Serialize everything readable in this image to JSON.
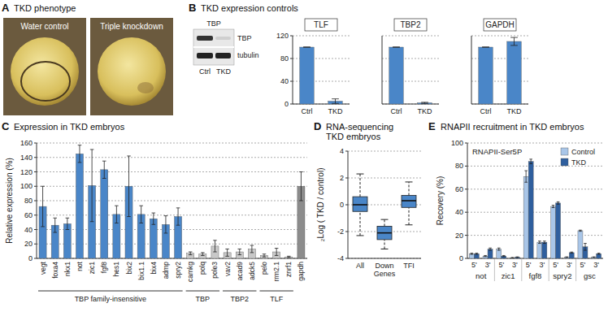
{
  "panels": {
    "A": {
      "letter": "A",
      "title": "TKD phenotype",
      "images": [
        "Water control",
        "Triple knockdown"
      ]
    },
    "B": {
      "letter": "B",
      "title": "TKD expression controls",
      "blot": {
        "protein": "TBP",
        "bands": [
          "TBP",
          "tubulin"
        ],
        "lanes": [
          "Ctrl",
          "TKD"
        ]
      }
    },
    "C": {
      "letter": "C",
      "title": "Expression in TKD embryos"
    },
    "D": {
      "letter": "D",
      "title_lines": [
        "RNA-sequencing",
        "TKD embryos"
      ]
    },
    "E": {
      "letter": "E",
      "title": "RNAPII recruitment in TKD embryos"
    }
  },
  "chart_data": [
    {
      "type": "bar",
      "title": "TLF",
      "categories": [
        "Ctrl",
        "TKD"
      ],
      "values": [
        100,
        5
      ],
      "errors": [
        0,
        4
      ],
      "color": "#4a86c8",
      "ylim": [
        0,
        120
      ],
      "yticks": [
        0,
        40,
        80,
        120
      ],
      "grid": true
    },
    {
      "type": "bar",
      "title": "TBP2",
      "categories": [
        "Ctrl",
        "TKD"
      ],
      "values": [
        100,
        2
      ],
      "errors": [
        0,
        1
      ],
      "color": "#4a86c8",
      "ylim": [
        0,
        120
      ],
      "yticks": [
        0,
        40,
        80,
        120
      ],
      "grid": true,
      "tick_labels": "x"
    },
    {
      "type": "bar",
      "title": "GAPDH",
      "categories": [
        "Ctrl",
        "TKD"
      ],
      "values": [
        100,
        110
      ],
      "errors": [
        0,
        7
      ],
      "color": "#4a86c8",
      "ylim": [
        0,
        120
      ],
      "yticks": [
        0,
        40,
        80,
        120
      ],
      "grid": true,
      "tick_labels": "x"
    },
    {
      "type": "bar",
      "ylabel": "Relative expression (%)",
      "categories": [
        "vegt",
        "foxa4",
        "nkx1",
        "not",
        "zic1",
        "fgf8",
        "hes1",
        "bix2",
        "bix1.1",
        "bix4",
        "admp",
        "spry2",
        "camkg",
        "polq",
        "pole3",
        "vav2",
        "acad9",
        "adck5",
        "pelo",
        "rrm2.1",
        "znrf1",
        "gapdh"
      ],
      "values": [
        72,
        46,
        48,
        145,
        101,
        123,
        61,
        100,
        61,
        55,
        47,
        58,
        7,
        6,
        17,
        8,
        9,
        13,
        4,
        9,
        2,
        100
      ],
      "errors": [
        28,
        10,
        8,
        12,
        50,
        12,
        12,
        42,
        12,
        8,
        12,
        12,
        2,
        2,
        8,
        5,
        4,
        5,
        2,
        5,
        1,
        20
      ],
      "colors": [
        "#4a86c8",
        "#4a86c8",
        "#4a86c8",
        "#4a86c8",
        "#4a86c8",
        "#4a86c8",
        "#4a86c8",
        "#4a86c8",
        "#4a86c8",
        "#4a86c8",
        "#4a86c8",
        "#4a86c8",
        "#c8c8c8",
        "#c8c8c8",
        "#c8c8c8",
        "#c8c8c8",
        "#c8c8c8",
        "#c8c8c8",
        "#c8c8c8",
        "#c8c8c8",
        "#c8c8c8",
        "#8c8c8c"
      ],
      "groups": [
        {
          "label": "TBP family-insensitive",
          "count": 12
        },
        {
          "label": "TBP",
          "count": 3
        },
        {
          "label": "TBP2",
          "count": 3
        },
        {
          "label": "TLF",
          "count": 3
        }
      ],
      "ylim": [
        0,
        160
      ],
      "yticks": [
        0,
        20,
        40,
        60,
        80,
        100,
        120,
        140,
        160
      ],
      "grid": true
    },
    {
      "type": "box",
      "ylabel": "₂Log ( TKD / control)",
      "categories": [
        "All",
        "Down Genes",
        "TFI"
      ],
      "boxes": [
        {
          "whisker_low": -2.3,
          "q1": -0.5,
          "median": 0,
          "q3": 0.6,
          "whisker_high": 2.3
        },
        {
          "whisker_low": -3.3,
          "q1": -2.6,
          "median": -2.1,
          "q3": -1.6,
          "whisker_high": -1.1
        },
        {
          "whisker_low": -1.5,
          "q1": -0.2,
          "median": 0.3,
          "q3": 0.7,
          "whisker_high": 1.7
        }
      ],
      "color": "#4a86c8",
      "ylim": [
        -4,
        4
      ],
      "yticks": [
        -4,
        -2,
        0,
        2,
        4
      ],
      "grid": true
    },
    {
      "type": "bar",
      "title": "RNAPII-Ser5P",
      "ylabel": "Recovery (%)",
      "categories": [
        "5'",
        "3'",
        "5'",
        "3'",
        "5'",
        "3'",
        "5'",
        "3'",
        "5'",
        "3'"
      ],
      "groups": [
        {
          "label": "not",
          "count": 2
        },
        {
          "label": "zic1",
          "count": 2
        },
        {
          "label": "fgf8",
          "count": 2
        },
        {
          "label": "spry2",
          "count": 2
        },
        {
          "label": "gsc",
          "count": 2
        }
      ],
      "series": [
        {
          "name": "Control",
          "color": "#a9c6e8",
          "values": [
            4,
            2,
            8,
            0.5,
            71,
            14,
            45,
            1,
            24,
            1
          ],
          "errors": [
            0.5,
            0.5,
            1,
            0.3,
            5,
            1,
            1,
            0.3,
            0.5,
            0.3
          ]
        },
        {
          "name": "TKD",
          "color": "#2f5f9e",
          "values": [
            4,
            8,
            2,
            1,
            84,
            14,
            48,
            5,
            10,
            4
          ],
          "errors": [
            0.5,
            1,
            0.5,
            0.3,
            2,
            1,
            1,
            0.5,
            3,
            0.5
          ]
        }
      ],
      "legend": "top-right",
      "ylim": [
        0,
        100
      ],
      "yticks": [
        0,
        20,
        40,
        60,
        80,
        100
      ],
      "grid": true
    }
  ]
}
